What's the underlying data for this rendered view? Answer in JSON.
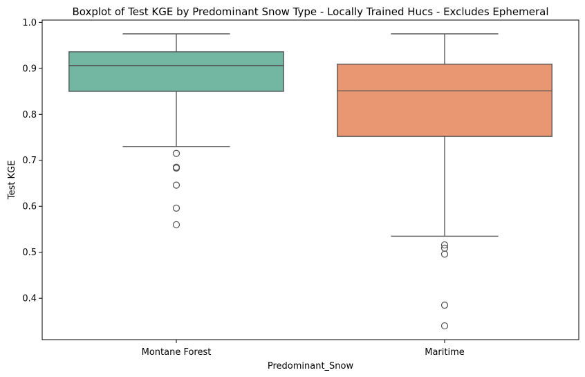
{
  "chart_data": {
    "type": "boxplot",
    "title": "Boxplot of Test KGE by Predominant Snow Type - Locally Trained Hucs - Excludes Ephemeral",
    "xlabel": "Predominant_Snow",
    "ylabel": "Test KGE",
    "ylim": [
      0.31,
      1.005
    ],
    "yticks": [
      0.4,
      0.5,
      0.6,
      0.7,
      0.8,
      0.9,
      1.0
    ],
    "yticklabels": [
      "0.4",
      "0.5",
      "0.6",
      "0.7",
      "0.8",
      "0.9",
      "1.0"
    ],
    "categories": [
      "Montane Forest",
      "Maritime"
    ],
    "grid": false,
    "boxes": [
      {
        "category": "Montane Forest",
        "whisker_low": 0.73,
        "q1": 0.85,
        "median": 0.906,
        "q3": 0.936,
        "whisker_high": 0.975,
        "outliers": [
          0.715,
          0.685,
          0.683,
          0.646,
          0.596,
          0.56
        ],
        "color": "#73b7a2"
      },
      {
        "category": "Maritime",
        "whisker_low": 0.535,
        "q1": 0.752,
        "median": 0.851,
        "q3": 0.909,
        "whisker_high": 0.975,
        "outliers": [
          0.516,
          0.509,
          0.496,
          0.385,
          0.34
        ],
        "color": "#e99672"
      }
    ],
    "line_color": "#4f4f4f"
  }
}
